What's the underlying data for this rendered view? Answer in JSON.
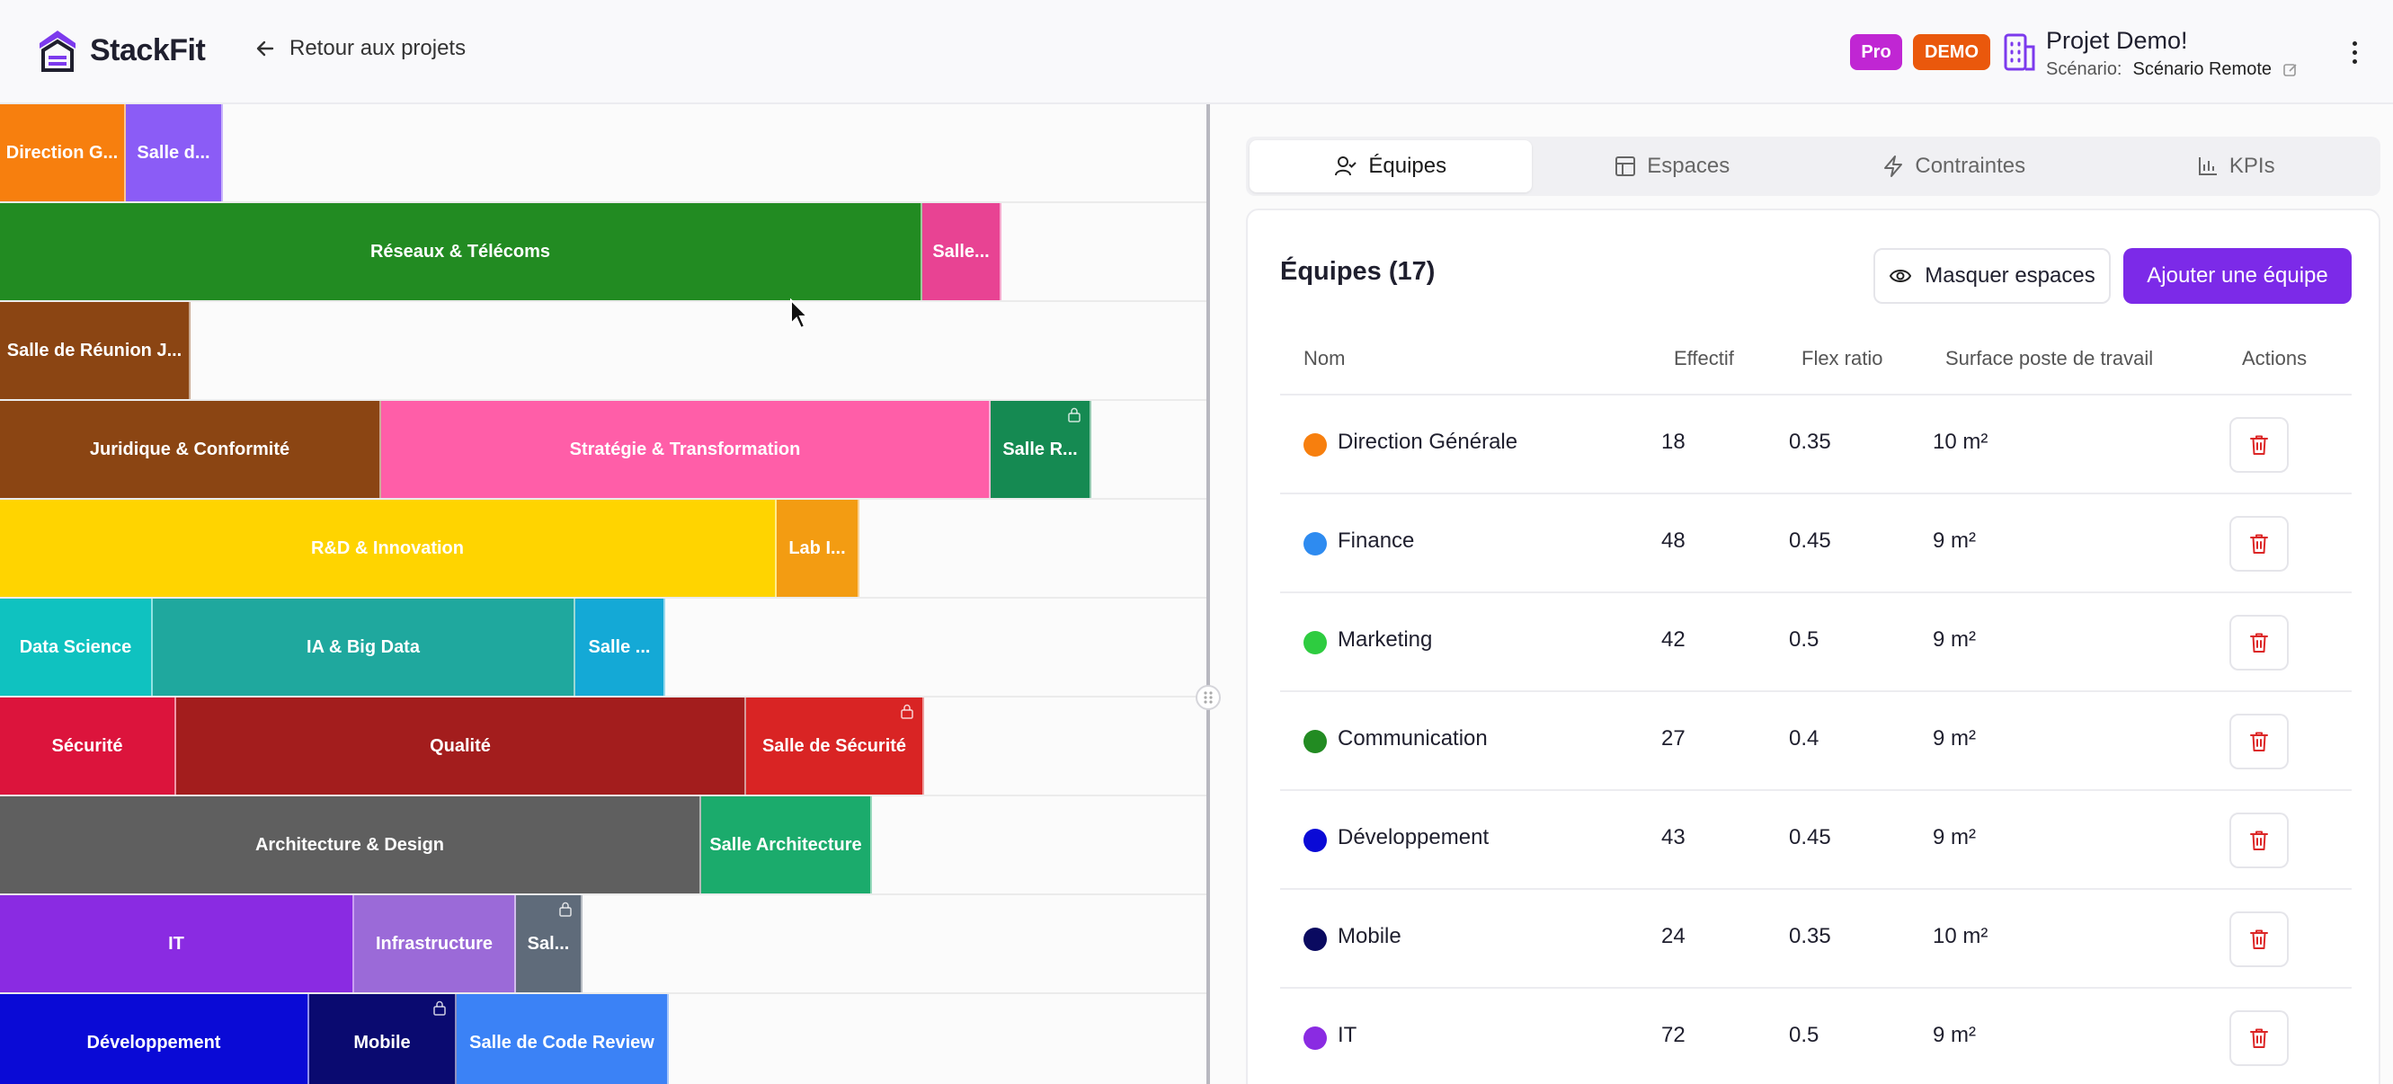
{
  "header": {
    "logo": "StackFit",
    "back_label": "Retour aux projets",
    "badge_pro": "Pro",
    "badge_demo": "DEMO",
    "project_name": "Projet Demo!",
    "scenario_label": "Scénario:",
    "scenario_value": "Scénario Remote"
  },
  "map": {
    "rows": [
      [
        {
          "label": "Direction G...",
          "color": "#f77f0e"
        },
        {
          "label": "Salle d...",
          "color": "#8b5cf6"
        }
      ],
      [
        {
          "label": "Réseaux & Télécoms",
          "color": "#228b22"
        },
        {
          "label": "Salle...",
          "color": "#e84393"
        }
      ],
      [
        {
          "label": "Salle de Réunion J...",
          "color": "#8b4513"
        }
      ],
      [
        {
          "label": "Juridique & Conformité",
          "color": "#8b4513"
        },
        {
          "label": "Stratégie & Transformation",
          "color": "#ff5ea8"
        },
        {
          "label": "Salle R...",
          "color": "#158a52",
          "locked": true
        }
      ],
      [
        {
          "label": "R&D & Innovation",
          "color": "#ffd400"
        },
        {
          "label": "Lab I...",
          "color": "#f39c12"
        }
      ],
      [
        {
          "label": "Data Science",
          "color": "#0fc2c0"
        },
        {
          "label": "IA & Big Data",
          "color": "#1fa89e"
        },
        {
          "label": "Salle ...",
          "color": "#14a9d6"
        }
      ],
      [
        {
          "label": "Sécurité",
          "color": "#dc143c"
        },
        {
          "label": "Qualité",
          "color": "#a31d1d"
        },
        {
          "label": "Salle de Sécurité",
          "color": "#d92424",
          "locked": true
        }
      ],
      [
        {
          "label": "Architecture & Design",
          "color": "#5f5f5f"
        },
        {
          "label": "Salle Architecture",
          "color": "#1bab6c"
        }
      ],
      [
        {
          "label": "IT",
          "color": "#8a2be2"
        },
        {
          "label": "Infrastructure",
          "color": "#9b6ad8"
        },
        {
          "label": "Sal...",
          "color": "#5f6b7a",
          "locked": true
        }
      ],
      [
        {
          "label": "Développement",
          "color": "#0a0ad6"
        },
        {
          "label": "Mobile",
          "color": "#0a0a70",
          "locked": true
        },
        {
          "label": "Salle de Code Review",
          "color": "#3b82f6"
        }
      ]
    ]
  },
  "tabs": [
    {
      "label": "Équipes",
      "icon": "user-check-icon"
    },
    {
      "label": "Espaces",
      "icon": "layout-icon"
    },
    {
      "label": "Contraintes",
      "icon": "zap-icon"
    },
    {
      "label": "KPIs",
      "icon": "bar-chart-icon"
    }
  ],
  "teams": {
    "title": "Équipes (17)",
    "hide_spaces_label": "Masquer espaces",
    "add_team_label": "Ajouter une équipe",
    "columns": [
      "Nom",
      "Effectif",
      "Flex ratio",
      "Surface poste de travail",
      "Actions"
    ],
    "rows": [
      {
        "name": "Direction Générale",
        "headcount": "18",
        "flex": "0.35",
        "surface": "10 m²",
        "color": "#f77f0e"
      },
      {
        "name": "Finance",
        "headcount": "48",
        "flex": "0.45",
        "surface": "9 m²",
        "color": "#2e8bf0"
      },
      {
        "name": "Marketing",
        "headcount": "42",
        "flex": "0.5",
        "surface": "9 m²",
        "color": "#2ecc40"
      },
      {
        "name": "Communication",
        "headcount": "27",
        "flex": "0.4",
        "surface": "9 m²",
        "color": "#228b22"
      },
      {
        "name": "Développement",
        "headcount": "43",
        "flex": "0.45",
        "surface": "9 m²",
        "color": "#0a0ad6"
      },
      {
        "name": "Mobile",
        "headcount": "24",
        "flex": "0.35",
        "surface": "10 m²",
        "color": "#0a0a60"
      },
      {
        "name": "IT",
        "headcount": "72",
        "flex": "0.5",
        "surface": "9 m²",
        "color": "#8a2be2"
      }
    ]
  }
}
